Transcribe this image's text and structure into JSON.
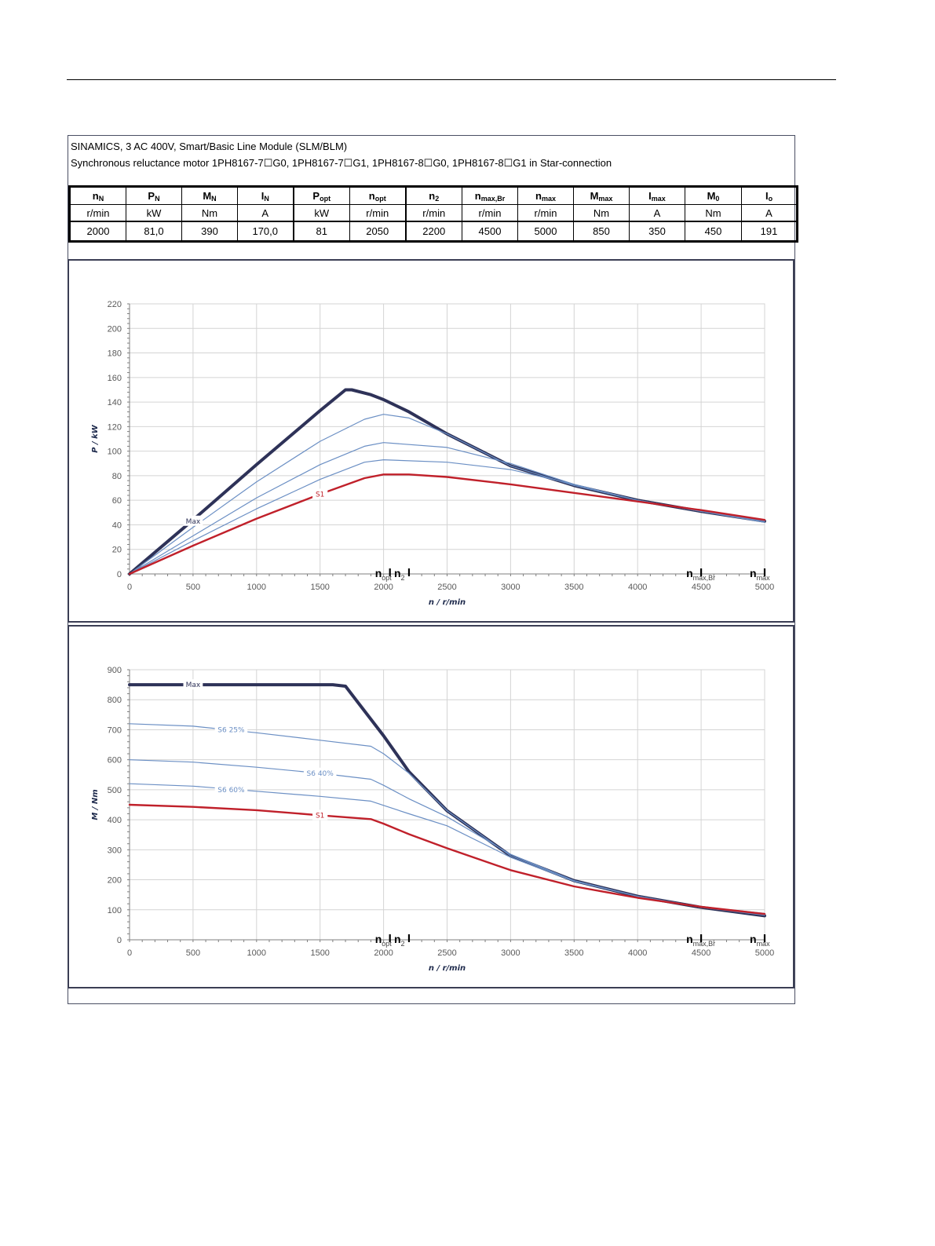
{
  "header": {
    "line1": "SINAMICS, 3 AC 400V, Smart/Basic Line Module (SLM/BLM)",
    "line2": "Synchronous reluctance motor  1PH8167-7☐G0,  1PH8167-7☐G1,  1PH8167-8☐G0,  1PH8167-8☐G1   in Star-connection"
  },
  "spec_table": {
    "columns": [
      {
        "sym": "n",
        "sub": "N",
        "unit": "r/min",
        "value": "2000"
      },
      {
        "sym": "P",
        "sub": "N",
        "unit": "kW",
        "value": "81,0"
      },
      {
        "sym": "M",
        "sub": "N",
        "unit": "Nm",
        "value": "390"
      },
      {
        "sym": "I",
        "sub": "N",
        "unit": "A",
        "value": "170,0"
      },
      {
        "sym": "P",
        "sub": "opt",
        "unit": "kW",
        "value": "81"
      },
      {
        "sym": "n",
        "sub": "opt",
        "unit": "r/min",
        "value": "2050"
      },
      {
        "sym": "n",
        "sub": "2",
        "unit": "r/min",
        "value": "2200"
      },
      {
        "sym": "n",
        "sub": "max,Br",
        "unit": "r/min",
        "value": "4500"
      },
      {
        "sym": "n",
        "sub": "max",
        "unit": "r/min",
        "value": "5000"
      },
      {
        "sym": "M",
        "sub": "max",
        "unit": "Nm",
        "value": "850"
      },
      {
        "sym": "I",
        "sub": "max",
        "unit": "A",
        "value": "350"
      },
      {
        "sym": "M",
        "sub": "0",
        "unit": "Nm",
        "value": "450"
      },
      {
        "sym": "I",
        "sub": "o",
        "unit": "A",
        "value": "191"
      }
    ]
  },
  "chart_data": [
    {
      "type": "line",
      "ylabel": "P / kW",
      "xlabel": "n / r/min",
      "xlim": [
        0,
        5000
      ],
      "ylim": [
        0,
        220
      ],
      "x_ticks": [
        0,
        500,
        1000,
        1500,
        2000,
        2500,
        3000,
        3500,
        4000,
        4500,
        5000
      ],
      "y_ticks": [
        0,
        20,
        40,
        60,
        80,
        100,
        120,
        140,
        160,
        180,
        200,
        220
      ],
      "grid": true,
      "markers": [
        {
          "x": 2050,
          "sym": "n",
          "sub": "opt"
        },
        {
          "x": 2200,
          "sym": "n",
          "sub": "2"
        },
        {
          "x": 4500,
          "sym": "n",
          "sub": "max,Br"
        },
        {
          "x": 5000,
          "sym": "n",
          "sub": "max"
        }
      ],
      "series": [
        {
          "name": "Max",
          "color": "#2e3258",
          "width": 4,
          "label_at": [
            500,
            43
          ],
          "points": [
            [
              0,
              0
            ],
            [
              500,
              44
            ],
            [
              1000,
              89
            ],
            [
              1500,
              133
            ],
            [
              1700,
              150
            ],
            [
              1750,
              150
            ],
            [
              1900,
              146
            ],
            [
              2000,
              142
            ],
            [
              2200,
              132
            ],
            [
              2500,
              114
            ],
            [
              3000,
              88
            ],
            [
              3500,
              72
            ],
            [
              4000,
              60
            ],
            [
              4500,
              51
            ],
            [
              5000,
              43
            ]
          ]
        },
        {
          "name": "",
          "color": "#6b8fc4",
          "width": 1.2,
          "label_at": null,
          "points": [
            [
              0,
              0
            ],
            [
              500,
              38
            ],
            [
              1000,
              75
            ],
            [
              1500,
              108
            ],
            [
              1850,
              126
            ],
            [
              2000,
              130
            ],
            [
              2200,
              127
            ],
            [
              2500,
              114
            ],
            [
              3000,
              88
            ],
            [
              3500,
              72
            ],
            [
              4000,
              60
            ],
            [
              4500,
              51
            ],
            [
              5000,
              43
            ]
          ]
        },
        {
          "name": "",
          "color": "#6b8fc4",
          "width": 1.2,
          "label_at": null,
          "points": [
            [
              0,
              0
            ],
            [
              500,
              31
            ],
            [
              1000,
              62
            ],
            [
              1500,
              89
            ],
            [
              1850,
              104
            ],
            [
              2000,
              107
            ],
            [
              2500,
              103
            ],
            [
              3000,
              90
            ],
            [
              3500,
              73
            ],
            [
              4000,
              60
            ],
            [
              4500,
              51
            ],
            [
              5000,
              43
            ]
          ]
        },
        {
          "name": "",
          "color": "#6b8fc4",
          "width": 1.2,
          "label_at": null,
          "points": [
            [
              0,
              0
            ],
            [
              500,
              27
            ],
            [
              1000,
              53
            ],
            [
              1500,
              77
            ],
            [
              1850,
              91
            ],
            [
              2000,
              93
            ],
            [
              2500,
              91
            ],
            [
              3000,
              85
            ],
            [
              3500,
              73
            ],
            [
              4000,
              60
            ],
            [
              4500,
              51
            ],
            [
              5000,
              42
            ]
          ]
        },
        {
          "name": "S1",
          "color": "#c0202a",
          "width": 2.4,
          "label_at": [
            1500,
            65
          ],
          "points": [
            [
              0,
              0
            ],
            [
              500,
              23
            ],
            [
              1000,
              45
            ],
            [
              1500,
              65
            ],
            [
              1850,
              78
            ],
            [
              2000,
              81
            ],
            [
              2200,
              81
            ],
            [
              2500,
              79
            ],
            [
              3000,
              73
            ],
            [
              3500,
              66
            ],
            [
              4000,
              59
            ],
            [
              4500,
              52
            ],
            [
              5000,
              44
            ]
          ]
        }
      ]
    },
    {
      "type": "line",
      "ylabel": "M / Nm",
      "xlabel": "n / r/min",
      "xlim": [
        0,
        5000
      ],
      "ylim": [
        0,
        900
      ],
      "x_ticks": [
        0,
        500,
        1000,
        1500,
        2000,
        2500,
        3000,
        3500,
        4000,
        4500,
        5000
      ],
      "y_ticks": [
        0,
        100,
        200,
        300,
        400,
        500,
        600,
        700,
        800,
        900
      ],
      "grid": true,
      "markers": [
        {
          "x": 2050,
          "sym": "n",
          "sub": "opt"
        },
        {
          "x": 2200,
          "sym": "n",
          "sub": "2"
        },
        {
          "x": 4500,
          "sym": "n",
          "sub": "max,Br"
        },
        {
          "x": 5000,
          "sym": "n",
          "sub": "max"
        }
      ],
      "series": [
        {
          "name": "Max",
          "color": "#2e3258",
          "width": 4,
          "label_at": [
            500,
            850
          ],
          "points": [
            [
              0,
              850
            ],
            [
              1600,
              850
            ],
            [
              1700,
              845
            ],
            [
              1800,
              790
            ],
            [
              2000,
              680
            ],
            [
              2200,
              560
            ],
            [
              2500,
              430
            ],
            [
              3000,
              280
            ],
            [
              3500,
              197
            ],
            [
              4000,
              145
            ],
            [
              4500,
              108
            ],
            [
              5000,
              80
            ]
          ]
        },
        {
          "name": "S6 25%",
          "color": "#6b8fc4",
          "width": 1.2,
          "label_at": [
            800,
            700
          ],
          "points": [
            [
              0,
              720
            ],
            [
              500,
              712
            ],
            [
              1000,
              690
            ],
            [
              1500,
              665
            ],
            [
              1900,
              645
            ],
            [
              2000,
              620
            ],
            [
              2200,
              555
            ],
            [
              2500,
              430
            ],
            [
              3000,
              280
            ],
            [
              3500,
              197
            ],
            [
              4000,
              145
            ],
            [
              4500,
              108
            ],
            [
              5000,
              82
            ]
          ]
        },
        {
          "name": "S6 40%",
          "color": "#6b8fc4",
          "width": 1.2,
          "label_at": [
            1500,
            555
          ],
          "points": [
            [
              0,
              600
            ],
            [
              500,
              592
            ],
            [
              1000,
              575
            ],
            [
              1500,
              555
            ],
            [
              1900,
              535
            ],
            [
              2000,
              515
            ],
            [
              2200,
              470
            ],
            [
              2500,
              410
            ],
            [
              3000,
              285
            ],
            [
              3500,
              197
            ],
            [
              4000,
              145
            ],
            [
              4500,
              108
            ],
            [
              5000,
              84
            ]
          ]
        },
        {
          "name": "S6 60%",
          "color": "#6b8fc4",
          "width": 1.2,
          "label_at": [
            800,
            500
          ],
          "points": [
            [
              0,
              520
            ],
            [
              500,
              512
            ],
            [
              1000,
              495
            ],
            [
              1500,
              478
            ],
            [
              1900,
              462
            ],
            [
              2000,
              448
            ],
            [
              2200,
              420
            ],
            [
              2500,
              380
            ],
            [
              3000,
              275
            ],
            [
              3500,
              195
            ],
            [
              4000,
              145
            ],
            [
              4500,
              110
            ],
            [
              5000,
              88
            ]
          ]
        },
        {
          "name": "S1",
          "color": "#c0202a",
          "width": 2.4,
          "label_at": [
            1500,
            415
          ],
          "points": [
            [
              0,
              450
            ],
            [
              500,
              443
            ],
            [
              1000,
              432
            ],
            [
              1500,
              415
            ],
            [
              1900,
              402
            ],
            [
              2000,
              387
            ],
            [
              2200,
              352
            ],
            [
              2500,
              305
            ],
            [
              3000,
              232
            ],
            [
              3500,
              178
            ],
            [
              4000,
              140
            ],
            [
              4500,
              110
            ],
            [
              5000,
              86
            ]
          ]
        }
      ]
    }
  ]
}
